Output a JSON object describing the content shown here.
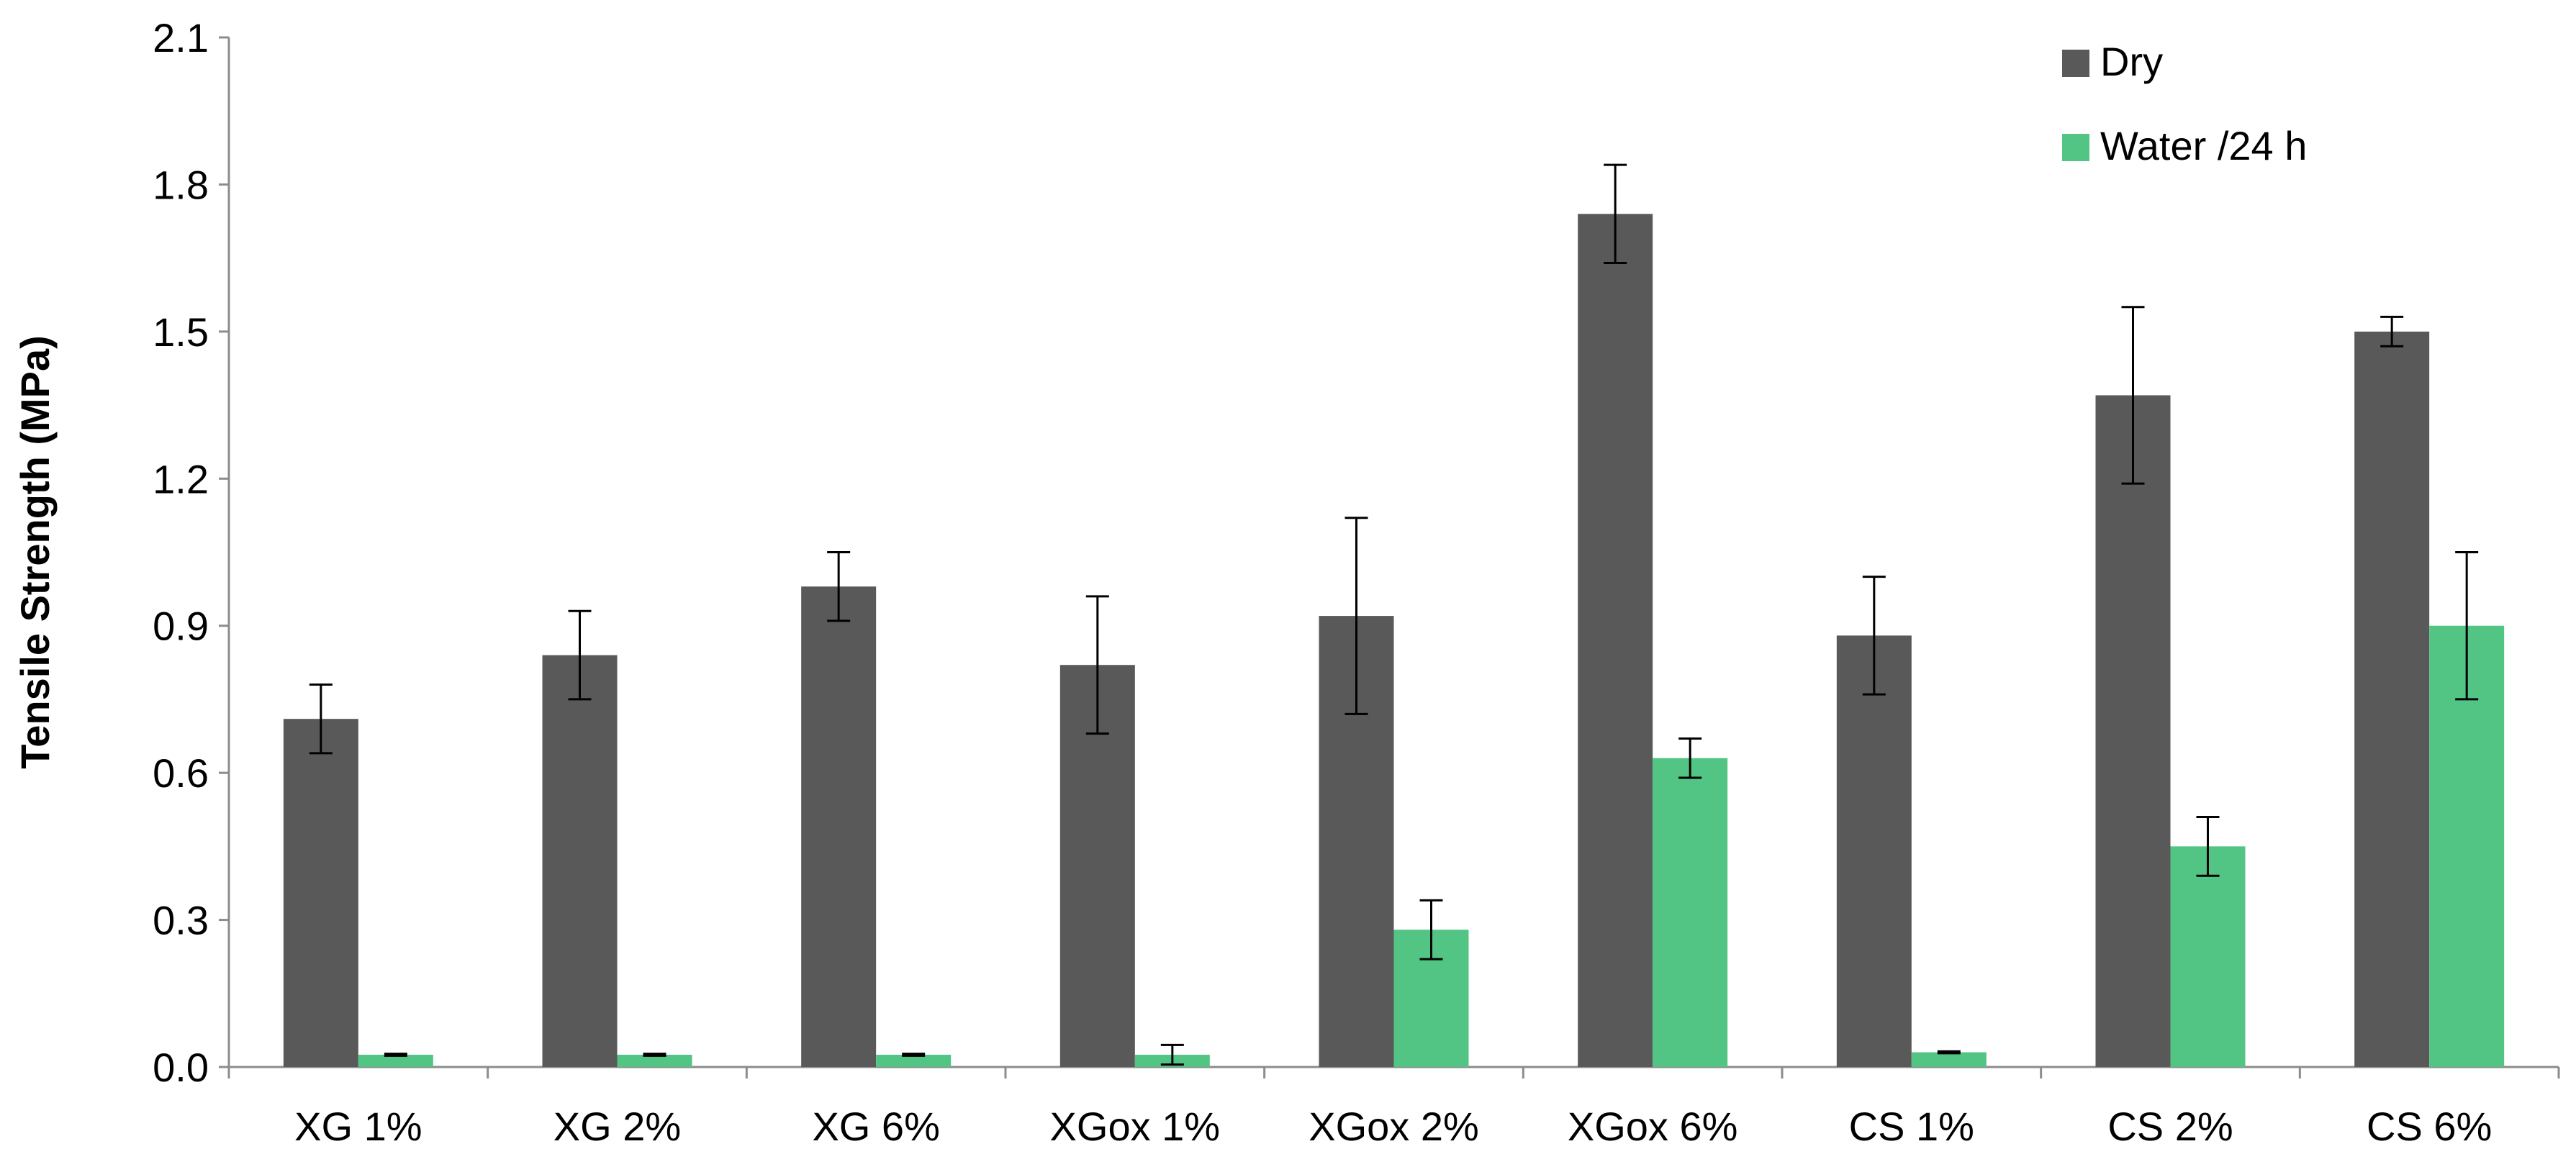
{
  "chart_data": {
    "type": "bar",
    "ylabel": "Tensile Strength (MPa)",
    "xlabel": "",
    "ylim": [
      0,
      2.1
    ],
    "yticks": [
      "0.0",
      "0.3",
      "0.6",
      "0.9",
      "1.2",
      "1.5",
      "1.8",
      "2.1"
    ],
    "grid": false,
    "legend_position": "top-right",
    "categories": [
      "XG 1%",
      "XG 2%",
      "XG 6%",
      "XGox 1%",
      "XGox 2%",
      "XGox 6%",
      "CS 1%",
      "CS 2%",
      "CS 6%"
    ],
    "series": [
      {
        "name": "Dry",
        "color": "#595959",
        "values": [
          0.71,
          0.84,
          0.98,
          0.82,
          0.92,
          1.74,
          0.88,
          1.37,
          1.5
        ],
        "errors": [
          0.07,
          0.09,
          0.07,
          0.14,
          0.2,
          0.1,
          0.12,
          0.18,
          0.03
        ]
      },
      {
        "name": "Water /24 h",
        "color": "#52c584",
        "values": [
          0.025,
          0.025,
          0.025,
          0.025,
          0.28,
          0.63,
          0.03,
          0.45,
          0.9
        ],
        "errors": [
          0.002,
          0.002,
          0.002,
          0.02,
          0.06,
          0.04,
          0.002,
          0.06,
          0.15
        ]
      }
    ]
  }
}
